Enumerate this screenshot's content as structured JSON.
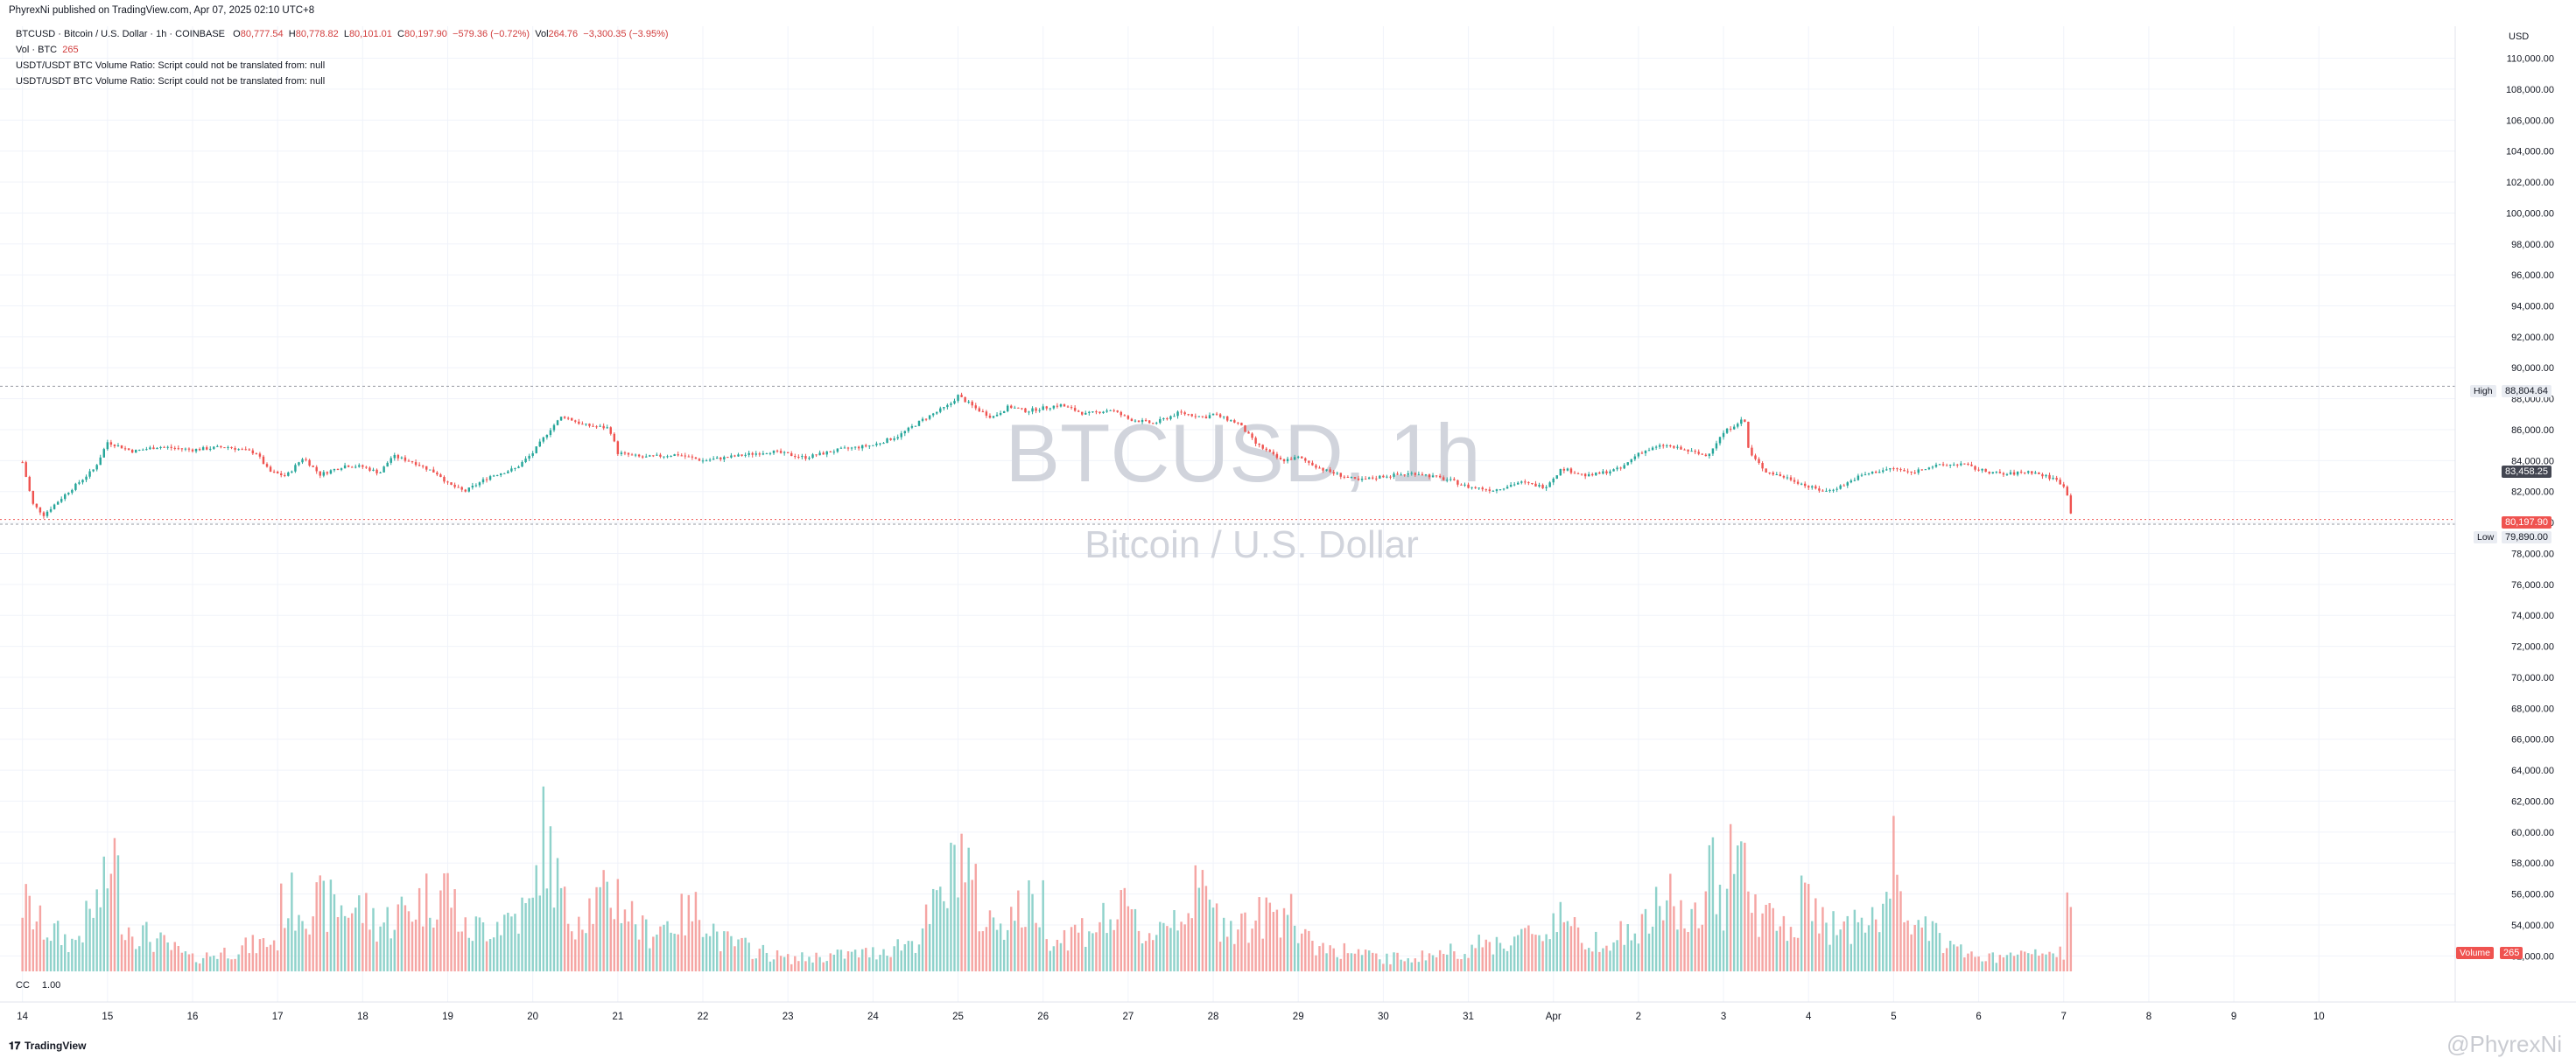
{
  "header": {
    "publisher": "PhyrexNi published on TradingView.com, Apr 07, 2025 02:10 UTC+8",
    "symbol_line": "BTCUSD · Bitcoin / U.S. Dollar · 1h · COINBASE",
    "open_label": "O",
    "open": "80,777.54",
    "high_label": "H",
    "high": "80,778.82",
    "low_label": "L",
    "low": "80,101.01",
    "close_label": "C",
    "close": "80,197.90",
    "change": "−579.36 (−0.72%)",
    "vol_label": "Vol",
    "vol": "264.76",
    "vol_change": "−3,300.35 (−3.95%)",
    "volume_line_label": "Vol · BTC",
    "volume_line_value": "265",
    "script_error_1": "USDT/USDT BTC Volume Ratio: Script could not be translated from: null",
    "script_error_2": "USDT/USDT BTC Volume Ratio: Script could not be translated from: null"
  },
  "watermark": {
    "symbol": "BTCUSD, 1h",
    "name": "Bitcoin / U.S. Dollar"
  },
  "currency_label": "USD",
  "labels": {
    "high_tag": "High",
    "high_value": "88,804.64",
    "low_tag": "Low",
    "low_value": "79,890.00",
    "current_price": "80,197.90",
    "current_overlap": "83,458.25",
    "volume_tag": "Volume",
    "volume_value": "265"
  },
  "cc": {
    "label": "CC",
    "value": "1.00"
  },
  "footer": {
    "logo": "TradingView",
    "user": "@PhyrexNi"
  },
  "colors": {
    "up": "#26a69a",
    "down": "#ef5350",
    "vol_up": "#8fd2cb",
    "vol_down": "#f5a5a3",
    "grid": "#f0f3fa",
    "axis_text": "#131722",
    "watermark": "#d1d4dc"
  },
  "chart_data": {
    "type": "candlestick",
    "title": "BTCUSD · Bitcoin / U.S. Dollar · 1h · COINBASE",
    "y_axis": {
      "side": "right",
      "ticks": [
        52000,
        54000,
        56000,
        58000,
        60000,
        62000,
        64000,
        66000,
        68000,
        70000,
        72000,
        74000,
        76000,
        78000,
        80000,
        82000,
        84000,
        86000,
        88000,
        90000,
        92000,
        94000,
        96000,
        98000,
        100000,
        102000,
        104000,
        106000,
        108000,
        110000
      ],
      "tick_labels": [
        "52,000.00",
        "54,000.00",
        "56,000.00",
        "58,000.00",
        "60,000.00",
        "62,000.00",
        "64,000.00",
        "66,000.00",
        "68,000.00",
        "70,000.00",
        "72,000.00",
        "74,000.00",
        "76,000.00",
        "78,000.00",
        "80,000.00",
        "82,000.00",
        "84,000.00",
        "86,000.00",
        "88,000.00",
        "90,000.00",
        "92,000.00",
        "94,000.00",
        "96,000.00",
        "98,000.00",
        "100,000.00",
        "102,000.00",
        "104,000.00",
        "106,000.00",
        "108,000.00",
        "110,000.00"
      ],
      "ylim": [
        51000,
        111500
      ]
    },
    "x_axis": {
      "tick_labels": [
        "14",
        "15",
        "16",
        "17",
        "18",
        "19",
        "20",
        "21",
        "22",
        "23",
        "24",
        "25",
        "26",
        "27",
        "28",
        "29",
        "30",
        "31",
        "Apr",
        "2",
        "3",
        "4",
        "5",
        "6",
        "7",
        "8",
        "9",
        "10"
      ],
      "tick_days": [
        0,
        1,
        2,
        3,
        4,
        5,
        6,
        7,
        8,
        9,
        10,
        11,
        12,
        13,
        14,
        15,
        16,
        17,
        18,
        19,
        20,
        21,
        22,
        23,
        24,
        25,
        26,
        27
      ],
      "xlim_days": [
        -0.12,
        28.5
      ]
    },
    "price_keypoints": [
      [
        0,
        83900
      ],
      [
        0.12,
        81200
      ],
      [
        0.25,
        80500
      ],
      [
        0.5,
        81800
      ],
      [
        0.85,
        83500
      ],
      [
        1.0,
        85200
      ],
      [
        1.3,
        84600
      ],
      [
        1.6,
        84900
      ],
      [
        2.0,
        84700
      ],
      [
        2.4,
        84900
      ],
      [
        2.75,
        84500
      ],
      [
        2.9,
        83300
      ],
      [
        3.1,
        83000
      ],
      [
        3.3,
        84200
      ],
      [
        3.5,
        83100
      ],
      [
        3.8,
        83700
      ],
      [
        4.0,
        83600
      ],
      [
        4.2,
        83200
      ],
      [
        4.35,
        84300
      ],
      [
        4.6,
        83900
      ],
      [
        4.9,
        83100
      ],
      [
        5.0,
        82500
      ],
      [
        5.2,
        82000
      ],
      [
        5.5,
        83000
      ],
      [
        5.8,
        83500
      ],
      [
        6.0,
        84500
      ],
      [
        6.2,
        86000
      ],
      [
        6.35,
        86900
      ],
      [
        6.6,
        86300
      ],
      [
        6.9,
        86100
      ],
      [
        7.0,
        84500
      ],
      [
        7.3,
        84200
      ],
      [
        7.7,
        84400
      ],
      [
        8.0,
        84000
      ],
      [
        8.4,
        84300
      ],
      [
        8.8,
        84600
      ],
      [
        9.2,
        84200
      ],
      [
        9.6,
        84700
      ],
      [
        10.0,
        85000
      ],
      [
        10.3,
        85600
      ],
      [
        10.6,
        86700
      ],
      [
        10.9,
        87600
      ],
      [
        11.0,
        88200
      ],
      [
        11.2,
        87400
      ],
      [
        11.4,
        86800
      ],
      [
        11.6,
        87500
      ],
      [
        11.8,
        87200
      ],
      [
        12.0,
        87400
      ],
      [
        12.2,
        87600
      ],
      [
        12.5,
        87000
      ],
      [
        12.8,
        87300
      ],
      [
        13.0,
        86700
      ],
      [
        13.3,
        86400
      ],
      [
        13.6,
        87100
      ],
      [
        13.9,
        86800
      ],
      [
        14.0,
        87000
      ],
      [
        14.3,
        86400
      ],
      [
        14.5,
        85100
      ],
      [
        14.8,
        84000
      ],
      [
        15.0,
        84200
      ],
      [
        15.3,
        83400
      ],
      [
        15.7,
        82700
      ],
      [
        16.0,
        83000
      ],
      [
        16.4,
        83200
      ],
      [
        16.8,
        82700
      ],
      [
        17.0,
        82300
      ],
      [
        17.3,
        82100
      ],
      [
        17.6,
        82600
      ],
      [
        17.9,
        82300
      ],
      [
        18.1,
        83500
      ],
      [
        18.4,
        83000
      ],
      [
        18.8,
        83500
      ],
      [
        19.0,
        84500
      ],
      [
        19.3,
        85000
      ],
      [
        19.6,
        84600
      ],
      [
        19.8,
        84300
      ],
      [
        20.0,
        85800
      ],
      [
        20.2,
        86600
      ],
      [
        20.25,
        86500
      ],
      [
        20.3,
        84500
      ],
      [
        20.5,
        83300
      ],
      [
        20.8,
        82800
      ],
      [
        21.0,
        82300
      ],
      [
        21.2,
        82000
      ],
      [
        21.4,
        82400
      ],
      [
        21.6,
        83000
      ],
      [
        21.8,
        83300
      ],
      [
        22.0,
        83500
      ],
      [
        22.2,
        83200
      ],
      [
        22.4,
        83600
      ],
      [
        22.8,
        83800
      ],
      [
        23.0,
        83400
      ],
      [
        23.3,
        83100
      ],
      [
        23.6,
        83300
      ],
      [
        23.9,
        82800
      ],
      [
        24.0,
        82400
      ],
      [
        24.05,
        81600
      ],
      [
        24.1,
        80200
      ]
    ],
    "volume_axis_note": "volume pane shares the price pane bottom; bar heights are relative BTC volume",
    "volume_keypoints": [
      [
        0,
        0.45
      ],
      [
        0.2,
        0.3
      ],
      [
        0.6,
        0.18
      ],
      [
        1.0,
        0.55
      ],
      [
        1.05,
        0.85
      ],
      [
        1.2,
        0.3
      ],
      [
        2.0,
        0.08
      ],
      [
        3.0,
        0.2
      ],
      [
        3.05,
        0.45
      ],
      [
        4.0,
        0.4
      ],
      [
        4.2,
        0.3
      ],
      [
        5.0,
        0.55
      ],
      [
        5.2,
        0.25
      ],
      [
        6.0,
        0.4
      ],
      [
        6.1,
        0.9
      ],
      [
        6.2,
        0.75
      ],
      [
        6.4,
        0.35
      ],
      [
        7.0,
        0.5
      ],
      [
        7.3,
        0.25
      ],
      [
        8.0,
        0.4
      ],
      [
        8.2,
        0.2
      ],
      [
        9.0,
        0.08
      ],
      [
        10.0,
        0.12
      ],
      [
        10.5,
        0.2
      ],
      [
        10.9,
        0.55
      ],
      [
        11.0,
        0.85
      ],
      [
        11.1,
        0.7
      ],
      [
        11.3,
        0.3
      ],
      [
        12.0,
        0.45
      ],
      [
        12.1,
        0.2
      ],
      [
        13.0,
        0.38
      ],
      [
        13.2,
        0.22
      ],
      [
        13.9,
        0.52
      ],
      [
        14.0,
        0.35
      ],
      [
        14.4,
        0.3
      ],
      [
        14.8,
        0.4
      ],
      [
        14.9,
        0.58
      ],
      [
        15.0,
        0.2
      ],
      [
        16.0,
        0.08
      ],
      [
        16.5,
        0.1
      ],
      [
        17.0,
        0.15
      ],
      [
        17.9,
        0.25
      ],
      [
        18.1,
        0.42
      ],
      [
        18.3,
        0.2
      ],
      [
        19.0,
        0.25
      ],
      [
        19.4,
        0.5
      ],
      [
        19.6,
        0.25
      ],
      [
        19.9,
        0.65
      ],
      [
        20.0,
        0.45
      ],
      [
        20.05,
        0.9
      ],
      [
        20.15,
        1.0
      ],
      [
        20.25,
        0.65
      ],
      [
        20.35,
        0.4
      ],
      [
        20.8,
        0.25
      ],
      [
        21.0,
        0.55
      ],
      [
        21.1,
        0.3
      ],
      [
        21.8,
        0.3
      ],
      [
        22.0,
        0.7
      ],
      [
        22.1,
        0.55
      ],
      [
        22.2,
        0.3
      ],
      [
        23.0,
        0.08
      ],
      [
        24.0,
        0.12
      ],
      [
        24.05,
        0.42
      ],
      [
        24.1,
        0.25
      ]
    ],
    "markers": {
      "session_high": 88804.64,
      "session_low": 79890.0,
      "last_close": 80197.9
    }
  }
}
